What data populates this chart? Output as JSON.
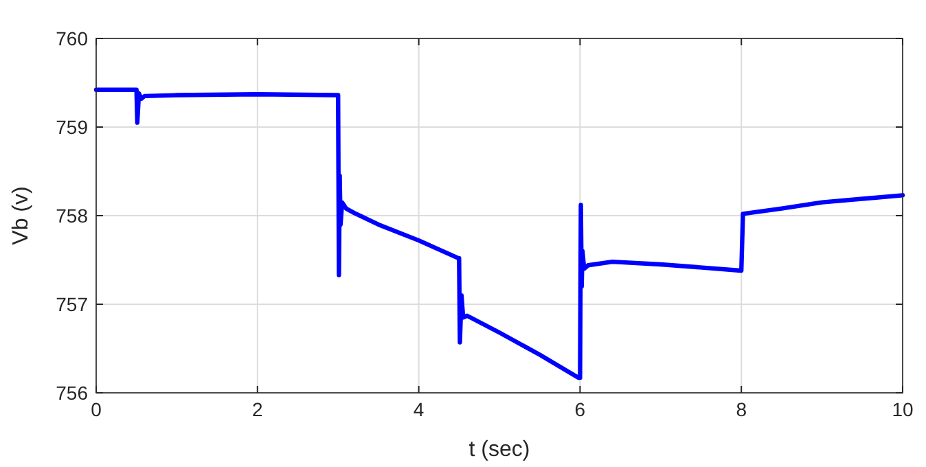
{
  "chart_data": {
    "type": "line",
    "xlabel": "t (sec)",
    "ylabel": "Vb (v)",
    "xlim": [
      0,
      10
    ],
    "ylim": [
      756,
      760
    ],
    "xticks": [
      0,
      2,
      4,
      6,
      8,
      10
    ],
    "yticks": [
      756,
      757,
      758,
      759,
      760
    ],
    "grid": true,
    "line_style": "solid",
    "marker": "none",
    "series": [
      {
        "color": "#0000ff",
        "x": [
          0,
          0.49,
          0.5,
          0.51,
          0.53,
          0.56,
          0.6,
          1,
          2,
          2.98,
          3.0,
          3.01,
          3.02,
          3.03,
          3.05,
          3.1,
          3.2,
          3.5,
          4,
          4.49,
          4.5,
          4.51,
          4.53,
          4.55,
          4.6,
          5,
          5.5,
          5.98,
          6.0,
          6.01,
          6.02,
          6.03,
          6.05,
          6.1,
          6.4,
          7,
          7.99,
          8.0,
          8.02,
          8.5,
          9,
          10
        ],
        "values": [
          759.42,
          759.42,
          759.42,
          759.05,
          759.38,
          759.32,
          759.35,
          759.36,
          759.37,
          759.36,
          759.36,
          757.33,
          758.45,
          757.9,
          758.15,
          758.08,
          758.03,
          757.9,
          757.72,
          757.52,
          757.52,
          756.57,
          757.1,
          756.85,
          756.87,
          756.68,
          756.43,
          756.17,
          756.17,
          758.12,
          757.2,
          757.6,
          757.4,
          757.44,
          757.48,
          757.45,
          757.38,
          757.38,
          758.02,
          758.08,
          758.15,
          758.23
        ]
      }
    ]
  }
}
